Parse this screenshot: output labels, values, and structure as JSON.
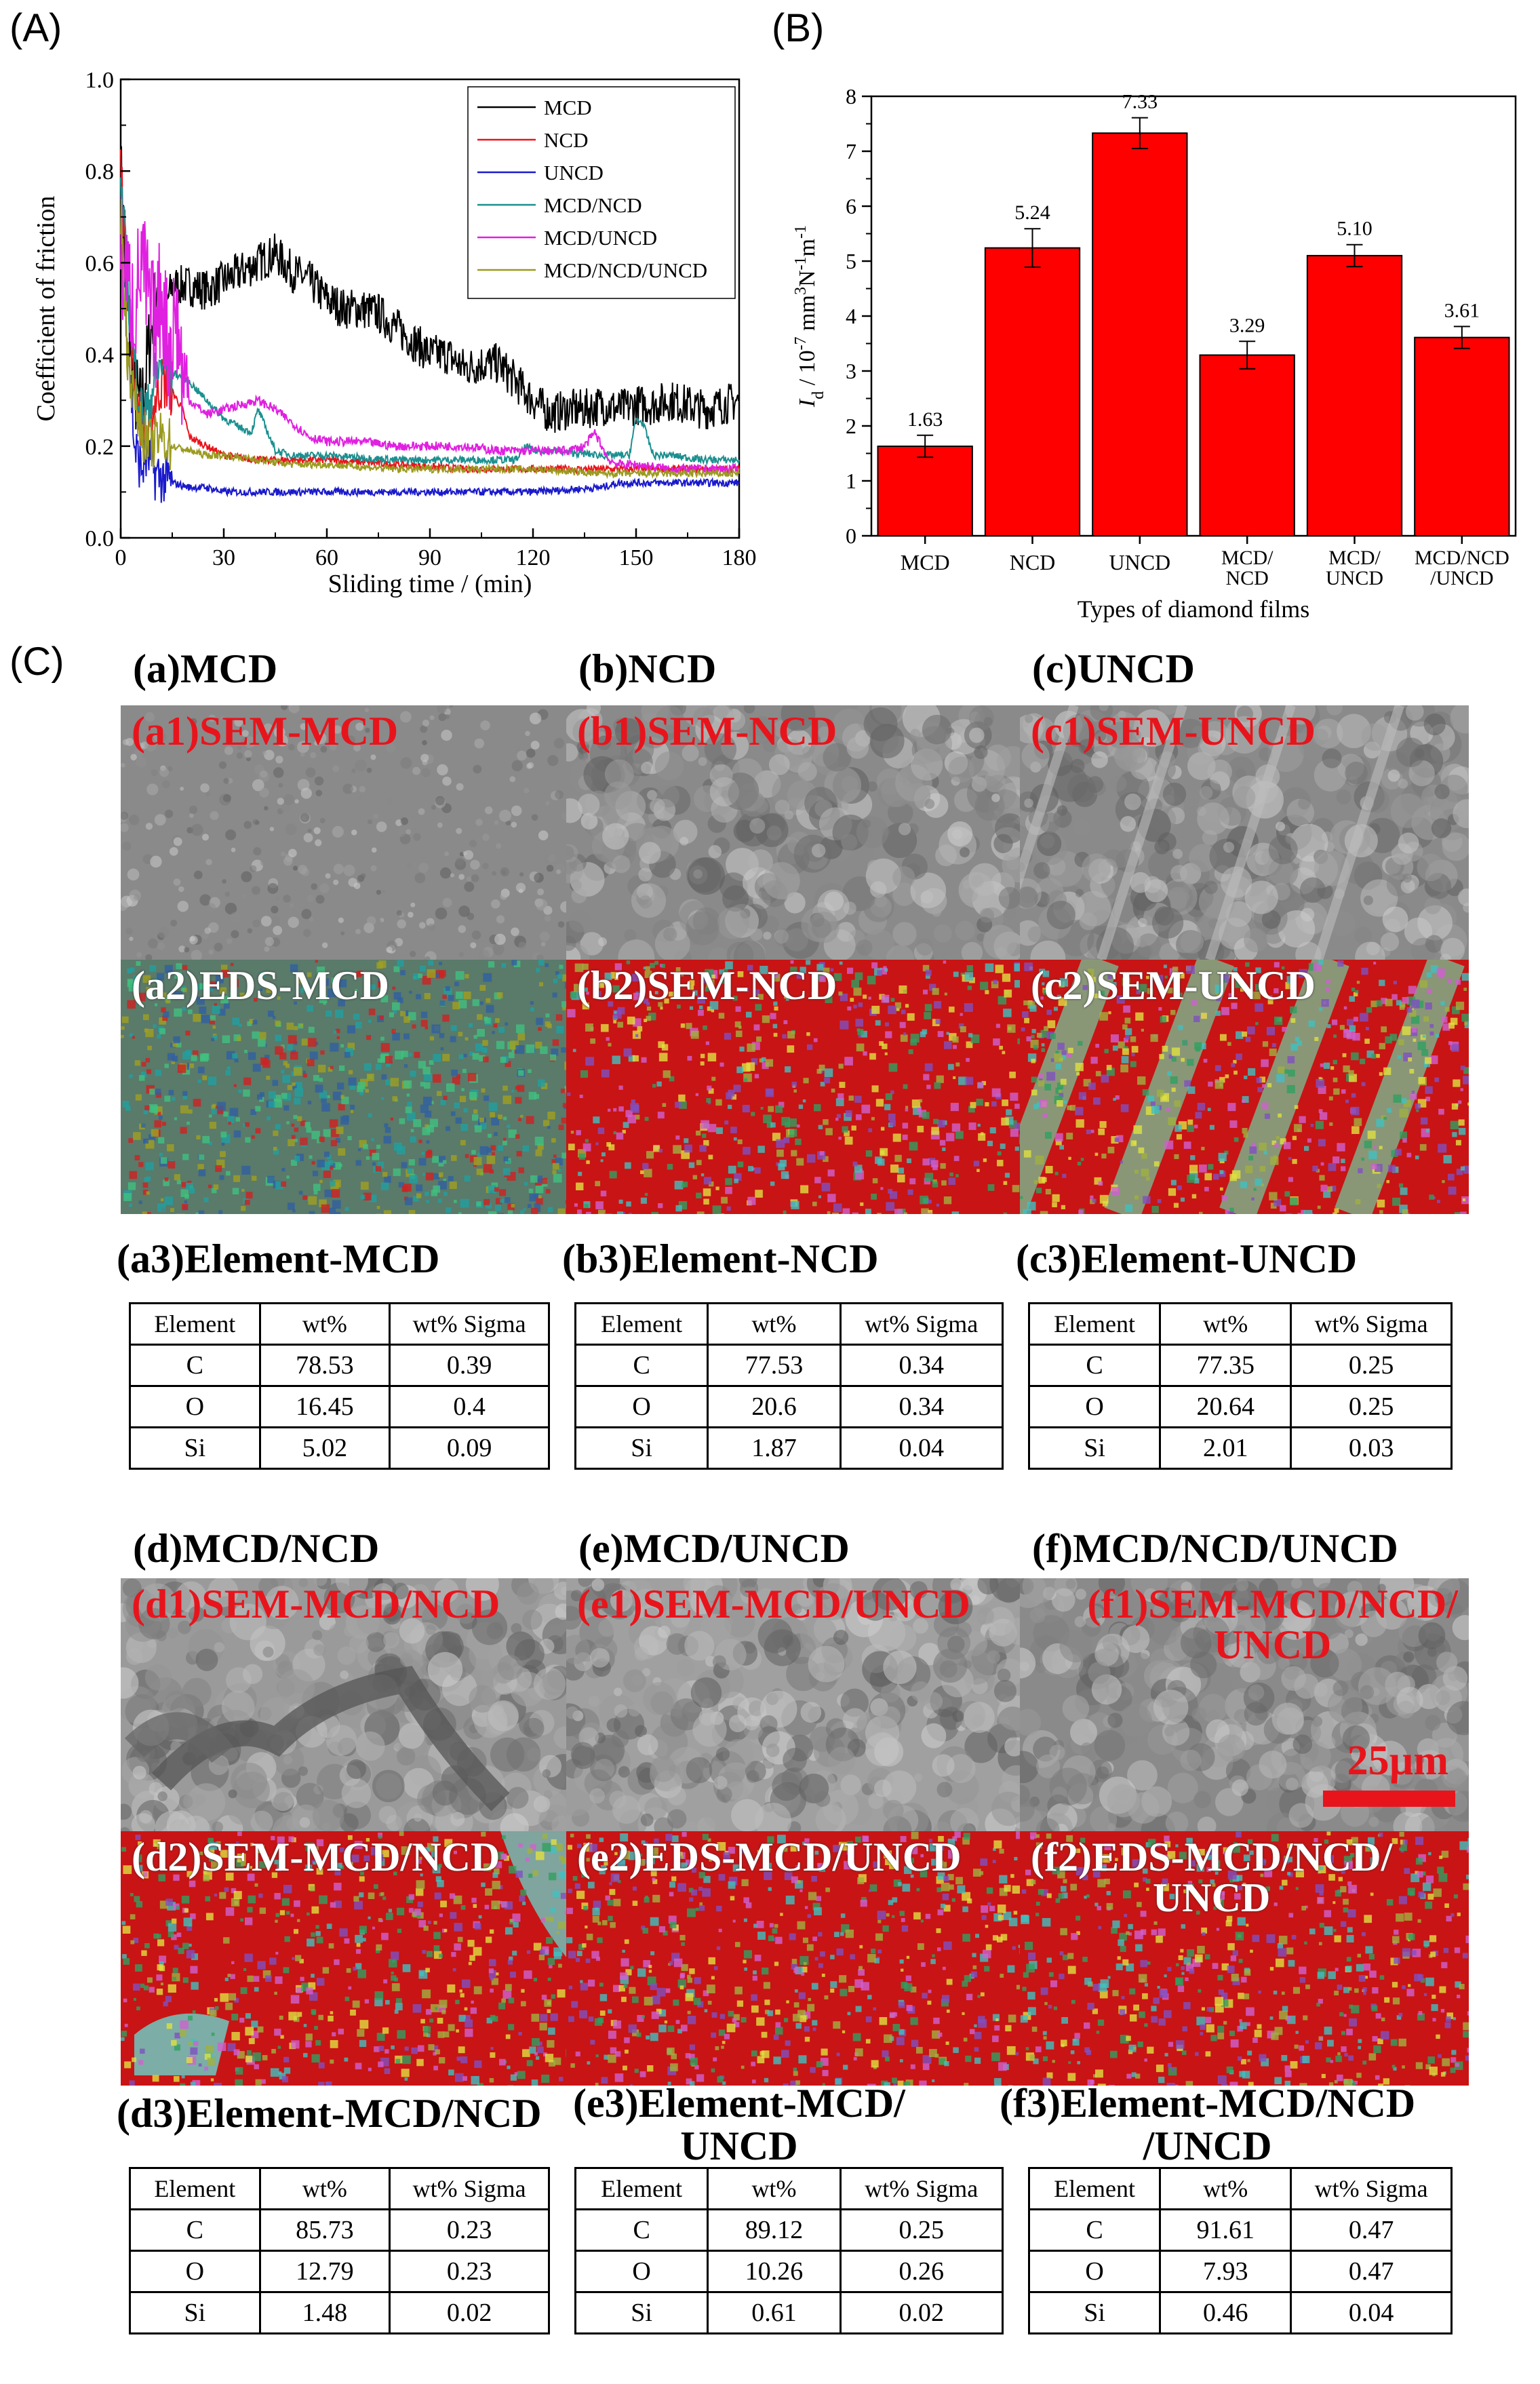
{
  "panel_letters": {
    "A": "(A)",
    "B": "(B)",
    "C": "(C)"
  },
  "chart_data": [
    {
      "type": "line",
      "xlabel": "Sliding time / (min)",
      "ylabel": "Coefficient of friction",
      "xlim": [
        0,
        180
      ],
      "ylim": [
        0.0,
        1.0
      ],
      "xticks": [
        "0",
        "30",
        "60",
        "90",
        "120",
        "150",
        "180"
      ],
      "yticks": [
        "0.0",
        "0.2",
        "0.4",
        "0.6",
        "0.8",
        "1.0"
      ],
      "legend_position": "top-right",
      "series": [
        {
          "name": "MCD",
          "color": "#000000",
          "x": [
            0,
            2,
            4,
            6,
            8,
            10,
            12,
            15,
            20,
            25,
            30,
            35,
            40,
            45,
            50,
            55,
            60,
            65,
            70,
            75,
            80,
            85,
            90,
            95,
            100,
            105,
            110,
            115,
            120,
            125,
            130,
            135,
            140,
            145,
            150,
            155,
            160,
            165,
            170,
            175,
            180
          ],
          "y": [
            0.8,
            0.5,
            0.32,
            0.28,
            0.4,
            0.52,
            0.48,
            0.55,
            0.55,
            0.54,
            0.56,
            0.58,
            0.6,
            0.62,
            0.58,
            0.56,
            0.52,
            0.5,
            0.5,
            0.49,
            0.46,
            0.43,
            0.4,
            0.4,
            0.37,
            0.38,
            0.38,
            0.34,
            0.3,
            0.27,
            0.28,
            0.28,
            0.29,
            0.28,
            0.29,
            0.29,
            0.3,
            0.29,
            0.28,
            0.29,
            0.3
          ]
        },
        {
          "name": "NCD",
          "color": "#e8141c",
          "x": [
            0,
            2,
            4,
            6,
            8,
            10,
            12,
            15,
            18,
            20,
            25,
            30,
            40,
            50,
            60,
            80,
            100,
            120,
            140,
            160,
            180
          ],
          "y": [
            0.82,
            0.55,
            0.34,
            0.25,
            0.22,
            0.3,
            0.34,
            0.32,
            0.28,
            0.22,
            0.2,
            0.18,
            0.17,
            0.17,
            0.17,
            0.16,
            0.15,
            0.15,
            0.15,
            0.15,
            0.15
          ]
        },
        {
          "name": "UNCD",
          "color": "#1a1acc",
          "x": [
            0,
            2,
            4,
            6,
            8,
            10,
            15,
            20,
            25,
            30,
            40,
            60,
            80,
            100,
            120,
            140,
            145,
            150,
            160,
            180
          ],
          "y": [
            0.7,
            0.45,
            0.2,
            0.15,
            0.18,
            0.14,
            0.12,
            0.11,
            0.11,
            0.1,
            0.1,
            0.1,
            0.1,
            0.1,
            0.1,
            0.11,
            0.12,
            0.12,
            0.12,
            0.12
          ]
        },
        {
          "name": "MCD/NCD",
          "color": "#1b8f8f",
          "x": [
            0,
            2,
            4,
            6,
            8,
            10,
            12,
            15,
            18,
            20,
            25,
            30,
            35,
            38,
            40,
            45,
            50,
            60,
            80,
            100,
            115,
            118,
            120,
            125,
            140,
            148,
            150,
            152,
            155,
            160,
            170,
            180
          ],
          "y": [
            0.78,
            0.55,
            0.38,
            0.28,
            0.28,
            0.35,
            0.38,
            0.36,
            0.35,
            0.34,
            0.3,
            0.26,
            0.24,
            0.23,
            0.28,
            0.19,
            0.18,
            0.18,
            0.17,
            0.17,
            0.17,
            0.2,
            0.19,
            0.19,
            0.18,
            0.18,
            0.26,
            0.25,
            0.18,
            0.18,
            0.17,
            0.17
          ]
        },
        {
          "name": "MCD/UNCD",
          "color": "#e020e0",
          "x": [
            0,
            2,
            4,
            6,
            8,
            10,
            12,
            14,
            16,
            18,
            20,
            25,
            30,
            35,
            40,
            45,
            50,
            55,
            60,
            70,
            80,
            90,
            100,
            110,
            120,
            130,
            135,
            138,
            140,
            142,
            145,
            150,
            160,
            170,
            180
          ],
          "y": [
            0.62,
            0.55,
            0.5,
            0.6,
            0.52,
            0.45,
            0.55,
            0.4,
            0.5,
            0.35,
            0.3,
            0.27,
            0.28,
            0.29,
            0.3,
            0.28,
            0.25,
            0.22,
            0.21,
            0.21,
            0.2,
            0.2,
            0.2,
            0.19,
            0.19,
            0.19,
            0.2,
            0.23,
            0.2,
            0.17,
            0.16,
            0.16,
            0.15,
            0.15,
            0.15
          ]
        },
        {
          "name": "MCD/NCD/UNCD",
          "color": "#9a9a20",
          "x": [
            0,
            2,
            4,
            6,
            8,
            10,
            12,
            15,
            20,
            25,
            30,
            40,
            50,
            60,
            80,
            100,
            120,
            140,
            160,
            180
          ],
          "y": [
            0.72,
            0.4,
            0.3,
            0.24,
            0.2,
            0.21,
            0.22,
            0.2,
            0.19,
            0.18,
            0.18,
            0.17,
            0.16,
            0.16,
            0.15,
            0.15,
            0.15,
            0.14,
            0.14,
            0.14
          ]
        }
      ]
    },
    {
      "type": "bar",
      "xlabel": "Types of diamond films",
      "ylabel_main": "I",
      "ylabel_sub": "d",
      "ylabel_rest": " / 10",
      "ylabel_exp": "-7",
      "ylabel_unit": " mm",
      "ylabel_unit_exp": "3",
      "ylabel_n": "N",
      "ylabel_n_exp": "-1",
      "ylabel_m": "m",
      "ylabel_m_exp": "-1",
      "ylim": [
        0,
        8
      ],
      "yticks": [
        "0",
        "1",
        "2",
        "3",
        "4",
        "5",
        "6",
        "7",
        "8"
      ],
      "bar_color": "#ff0000",
      "categories": [
        [
          "MCD"
        ],
        [
          "NCD"
        ],
        [
          "UNCD"
        ],
        [
          "MCD/",
          "NCD"
        ],
        [
          "MCD/",
          "UNCD"
        ],
        [
          "MCD/NCD",
          "/UNCD"
        ]
      ],
      "values": [
        1.63,
        5.24,
        7.33,
        3.29,
        5.1,
        3.61
      ],
      "value_labels": [
        "1.63",
        "5.24",
        "7.33",
        "3.29",
        "5.10",
        "3.61"
      ],
      "errors": [
        0.2,
        0.35,
        0.28,
        0.25,
        0.2,
        0.2
      ]
    }
  ],
  "figure_c": {
    "panels": [
      {
        "title": "(a)MCD",
        "sem_label": "(a1)SEM-MCD",
        "eds_label": "(a2)EDS-MCD",
        "element_title": "(a3)Element-MCD",
        "rows": [
          [
            "C",
            "78.53",
            "0.39"
          ],
          [
            "O",
            "16.45",
            "0.4"
          ],
          [
            "Si",
            "5.02",
            "0.09"
          ]
        ]
      },
      {
        "title": "(b)NCD",
        "sem_label": "(b1)SEM-NCD",
        "eds_label": "(b2)SEM-NCD",
        "element_title": "(b3)Element-NCD",
        "rows": [
          [
            "C",
            "77.53",
            "0.34"
          ],
          [
            "O",
            "20.6",
            "0.34"
          ],
          [
            "Si",
            "1.87",
            "0.04"
          ]
        ]
      },
      {
        "title": "(c)UNCD",
        "sem_label": "(c1)SEM-UNCD",
        "eds_label": "(c2)SEM-UNCD",
        "element_title": "(c3)Element-UNCD",
        "rows": [
          [
            "C",
            "77.35",
            "0.25"
          ],
          [
            "O",
            "20.64",
            "0.25"
          ],
          [
            "Si",
            "2.01",
            "0.03"
          ]
        ]
      },
      {
        "title": "(d)MCD/NCD",
        "sem_label": "(d1)SEM-MCD/NCD",
        "eds_label": "(d2)SEM-MCD/NCD",
        "element_title": "(d3)Element-MCD/NCD",
        "rows": [
          [
            "C",
            "85.73",
            "0.23"
          ],
          [
            "O",
            "12.79",
            "0.23"
          ],
          [
            "Si",
            "1.48",
            "0.02"
          ]
        ]
      },
      {
        "title": "(e)MCD/UNCD",
        "sem_label": "(e1)SEM-MCD/UNCD",
        "eds_label": "(e2)EDS-MCD/UNCD",
        "element_title_l1": "(e3)Element-MCD/",
        "element_title_l2": "UNCD",
        "rows": [
          [
            "C",
            "89.12",
            "0.25"
          ],
          [
            "O",
            "10.26",
            "0.26"
          ],
          [
            "Si",
            "0.61",
            "0.02"
          ]
        ]
      },
      {
        "title": "(f)MCD/NCD/UNCD",
        "sem_label_l1": "(f1)SEM-MCD/NCD/",
        "sem_label_l2": "UNCD",
        "eds_label_l1": "(f2)EDS-MCD/NCD/",
        "eds_label_l2": "UNCD",
        "element_title_l1": "(f3)Element-MCD/NCD",
        "element_title_l2": "/UNCD",
        "rows": [
          [
            "C",
            "91.61",
            "0.47"
          ],
          [
            "O",
            "7.93",
            "0.47"
          ],
          [
            "Si",
            "0.46",
            "0.04"
          ]
        ]
      }
    ],
    "table_headers": [
      "Element",
      "wt%",
      "wt% Sigma"
    ],
    "scale_bar": "25µm"
  }
}
